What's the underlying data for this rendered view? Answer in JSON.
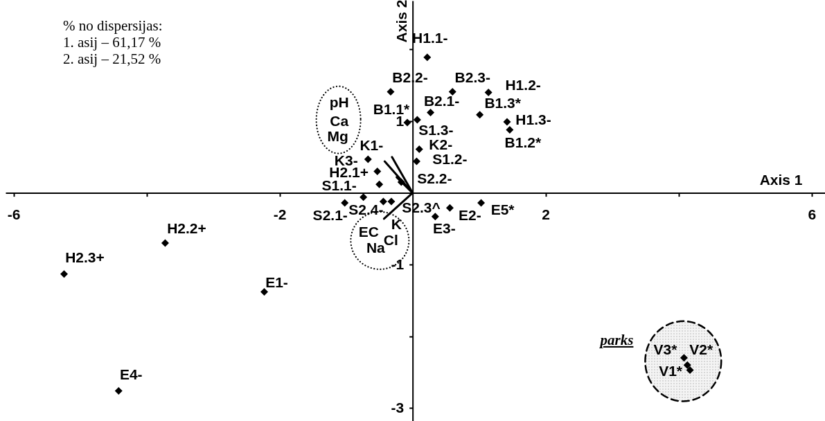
{
  "chart_data": {
    "type": "scatter",
    "xlabel": "Axis 1",
    "ylabel": "Axis 2",
    "xlim": [
      -6.12,
      6.2
    ],
    "ylim": [
      -3.18,
      2.68
    ],
    "xticks": [
      -6,
      {
        "value": -4,
        "label": null
      },
      -2,
      2,
      {
        "value": 4,
        "label": null
      },
      6
    ],
    "yticks": [
      {
        "value": 2,
        "label": null
      },
      1,
      -1,
      {
        "value": -2,
        "label": null
      },
      -3
    ],
    "grid": false,
    "marker": "diamond",
    "series": [
      {
        "color": "#000000",
        "x": [
          0.22,
          -0.33,
          0.6,
          1.14,
          1.01,
          1.42,
          1.46,
          0.27,
          -0.08,
          0.07,
          0.1,
          0.06,
          -0.67,
          -0.53,
          -0.5,
          -0.17,
          -0.74,
          -1.02,
          -0.44,
          -0.32,
          0.56,
          0.34,
          1.03,
          -3.72,
          -5.24,
          -2.23,
          -4.42,
          4.08,
          4.13,
          4.17
        ],
        "values": [
          1.89,
          1.41,
          1.41,
          1.4,
          1.09,
          0.99,
          0.88,
          1.12,
          0.98,
          1.02,
          0.61,
          0.44,
          0.47,
          0.3,
          0.12,
          0.15,
          -0.06,
          -0.14,
          -0.12,
          -0.12,
          -0.21,
          -0.33,
          -0.14,
          -0.7,
          -1.13,
          -1.38,
          -2.76,
          -2.3,
          -2.4,
          -2.47
        ]
      },
      {
        "type": "line",
        "marker": "none",
        "color": "#000000",
        "x": [
          0,
          -0.42
        ],
        "values": [
          0,
          0.44
        ]
      },
      {
        "type": "line",
        "marker": "none",
        "color": "#000000",
        "x": [
          0,
          -0.31
        ],
        "values": [
          0,
          0.5
        ]
      },
      {
        "type": "line",
        "marker": "none",
        "color": "#000000",
        "x": [
          0,
          -0.24
        ],
        "values": [
          0,
          0.22
        ]
      },
      {
        "type": "line",
        "marker": "none",
        "color": "#000000",
        "x": [
          0,
          -0.43
        ],
        "values": [
          0,
          -0.36
        ]
      }
    ],
    "annotations": [
      "% no dispersijas:",
      "1. asij – 61,17 %",
      "2. asij – 21,52 %",
      "parks",
      "pH",
      "Ca",
      "Mg",
      {
        "text": "EC",
        "x": -0.43,
        "y": -0.36
      },
      {
        "text": "Cl",
        "x": -0.43,
        "y": -0.36
      },
      {
        "text": "Na",
        "x": -0.43,
        "y": -0.36
      },
      {
        "text": "K",
        "x": -0.43,
        "y": -0.36
      },
      {
        "text": "V3*",
        "x": 4.08,
        "y": -2.3
      },
      {
        "text": "V2*",
        "x": 4.13,
        "y": -2.4
      },
      {
        "text": "V1*",
        "x": 4.17,
        "y": -2.47
      },
      {
        "text": "H1.1-",
        "x": 0.22,
        "y": 1.89
      },
      {
        "text": "B2.2-",
        "x": -0.33,
        "y": 1.41
      },
      {
        "text": "B2.3-",
        "x": 0.6,
        "y": 1.41
      },
      {
        "text": "H1.2-",
        "x": 1.14,
        "y": 1.4
      },
      {
        "text": "B1.3*",
        "x": 1.01,
        "y": 1.09
      },
      {
        "text": "H1.3-",
        "x": 1.42,
        "y": 0.99
      },
      {
        "text": "B1.2*",
        "x": 1.46,
        "y": 0.88
      },
      {
        "text": "B2.1-",
        "x": 0.27,
        "y": 1.12
      },
      {
        "text": "B1.1*",
        "x": -0.08,
        "y": 0.98
      },
      {
        "text": "S1.3-",
        "x": 0.07,
        "y": 1.02
      },
      {
        "text": "K2-",
        "x": 0.1,
        "y": 0.61
      },
      {
        "text": "S1.2-",
        "x": 0.06,
        "y": 0.44
      },
      {
        "text": "K1-",
        "x": -0.67,
        "y": 0.47
      },
      {
        "text": "K3-",
        "x": -0.53,
        "y": 0.3
      },
      {
        "text": "H2.1+",
        "x": -0.5,
        "y": 0.12
      },
      {
        "text": "S1.1-",
        "x": -0.74,
        "y": -0.06
      },
      {
        "text": "S2.2-",
        "x": -0.17,
        "y": 0.15
      },
      {
        "text": "S2.1-",
        "x": -1.02,
        "y": -0.14
      },
      {
        "text": "S2.4-",
        "x": -0.44,
        "y": -0.12
      },
      {
        "text": "S2.3^",
        "x": -0.32,
        "y": -0.12
      },
      {
        "text": "E2-",
        "x": 0.56,
        "y": -0.21
      },
      {
        "text": "E3-",
        "x": 0.34,
        "y": -0.33
      },
      {
        "text": "E5*",
        "x": 1.03,
        "y": -0.14
      },
      {
        "text": "H2.2+",
        "x": -3.72,
        "y": -0.7
      },
      {
        "text": "H2.3+",
        "x": -5.24,
        "y": -1.13
      },
      {
        "text": "E1-",
        "x": -2.23,
        "y": -1.38
      },
      {
        "text": "E4-",
        "x": -4.42,
        "y": -2.76
      }
    ]
  }
}
